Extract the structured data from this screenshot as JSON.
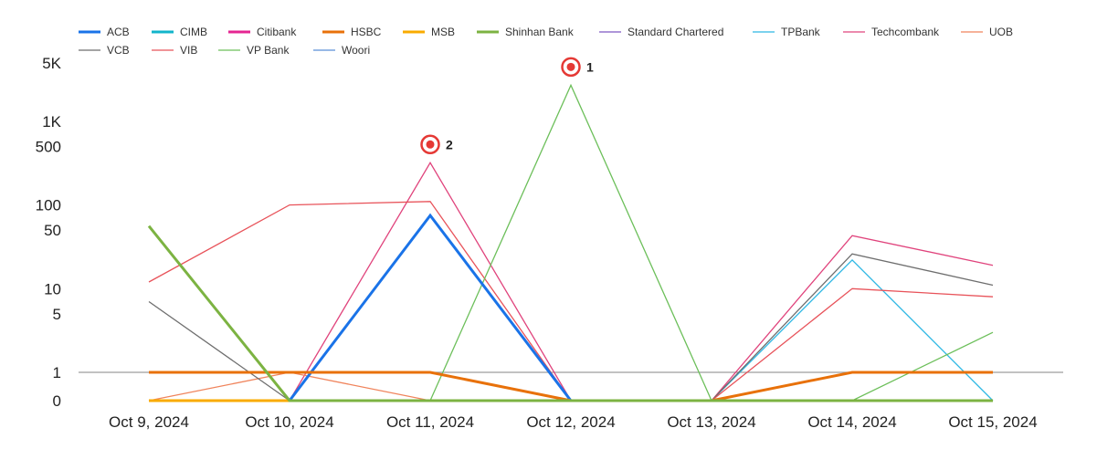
{
  "chart_data": {
    "type": "line",
    "title": "",
    "xlabel": "",
    "ylabel": "",
    "y_scale": "log",
    "grid": false,
    "legend_position": "top",
    "categories": [
      "Oct 9, 2024",
      "Oct 10, 2024",
      "Oct 11, 2024",
      "Oct 12, 2024",
      "Oct 13, 2024",
      "Oct 14, 2024",
      "Oct 15, 2024"
    ],
    "y_ticks": [
      {
        "value": 0,
        "label": "0"
      },
      {
        "value": 1,
        "label": "1"
      },
      {
        "value": 5,
        "label": "5"
      },
      {
        "value": 10,
        "label": "10"
      },
      {
        "value": 50,
        "label": "50"
      },
      {
        "value": 100,
        "label": "100"
      },
      {
        "value": 500,
        "label": "500"
      },
      {
        "value": 1000,
        "label": "1K"
      },
      {
        "value": 5000,
        "label": "5K"
      }
    ],
    "ylim": [
      0,
      5000
    ],
    "reference_line": {
      "value": 1,
      "color": "#9e9e9e"
    },
    "series": [
      {
        "name": "ACB",
        "color": "#1a73e8",
        "bold": true,
        "values": [
          0,
          0,
          75,
          0,
          0,
          0,
          0
        ]
      },
      {
        "name": "CIMB",
        "color": "#12b5cb",
        "bold": true,
        "values": [
          0,
          0,
          0,
          0,
          0,
          0,
          0
        ]
      },
      {
        "name": "Citibank",
        "color": "#e52592",
        "bold": true,
        "values": [
          0,
          0,
          0,
          0,
          0,
          0,
          0
        ]
      },
      {
        "name": "HSBC",
        "color": "#e8710a",
        "bold": true,
        "values": [
          1,
          1,
          1,
          0,
          0,
          1,
          1
        ]
      },
      {
        "name": "MSB",
        "color": "#f9ab00",
        "bold": true,
        "values": [
          0,
          0,
          0,
          0,
          0,
          0,
          0
        ]
      },
      {
        "name": "Shinhan Bank",
        "color": "#7cb342",
        "bold": true,
        "values": [
          56,
          0,
          0,
          0,
          0,
          0,
          0
        ]
      },
      {
        "name": "Standard Chartered",
        "color": "#7e57c2",
        "bold": false,
        "values": [
          0,
          0,
          0,
          0,
          0,
          0,
          0
        ]
      },
      {
        "name": "TPBank",
        "color": "#2fb8e4",
        "bold": false,
        "values": [
          0,
          0,
          0,
          0,
          0,
          22,
          0
        ]
      },
      {
        "name": "Techcombank",
        "color": "#e0437c",
        "bold": false,
        "values": [
          0,
          0,
          320,
          0,
          0,
          43,
          19
        ]
      },
      {
        "name": "UOB",
        "color": "#f0845c",
        "bold": false,
        "values": [
          0,
          1,
          0,
          0,
          0,
          1,
          1
        ]
      },
      {
        "name": "VCB",
        "color": "#6e6e6e",
        "bold": false,
        "values": [
          7,
          0,
          0,
          0,
          0,
          26,
          11
        ]
      },
      {
        "name": "VIB",
        "color": "#e8535a",
        "bold": false,
        "values": [
          12,
          100,
          110,
          0,
          0,
          10,
          8
        ]
      },
      {
        "name": "VP Bank",
        "color": "#6cbf5a",
        "bold": false,
        "values": [
          0,
          0,
          0,
          2700,
          0,
          0,
          3
        ]
      },
      {
        "name": "Woori",
        "color": "#5b8fd6",
        "bold": false,
        "values": [
          0,
          0,
          0,
          0,
          0,
          0,
          0
        ]
      }
    ],
    "annotations": [
      {
        "label": "1",
        "category_index": 3,
        "value": 2700
      },
      {
        "label": "2",
        "category_index": 2,
        "value": 320
      }
    ]
  }
}
